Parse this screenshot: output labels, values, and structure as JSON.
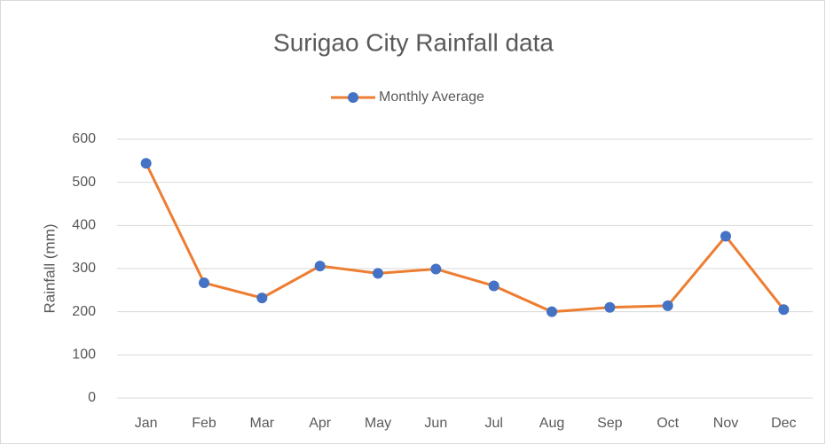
{
  "chart_data": {
    "type": "line",
    "title": "Surigao City Rainfall data",
    "ylabel": "Rainfall (mm)",
    "categories": [
      "Jan",
      "Feb",
      "Mar",
      "Apr",
      "May",
      "Jun",
      "Jul",
      "Aug",
      "Sep",
      "Oct",
      "Nov",
      "Dec"
    ],
    "series": [
      {
        "name": "Monthly Average",
        "color": "#ed7d31",
        "marker_color": "#4472c4",
        "values": [
          544,
          267,
          232,
          306,
          289,
          299,
          260,
          200,
          210,
          214,
          375,
          205
        ]
      }
    ],
    "ylim": [
      0,
      600
    ],
    "yticks": [
      0,
      100,
      200,
      300,
      400,
      500,
      600
    ],
    "grid": true,
    "legend": "top"
  }
}
